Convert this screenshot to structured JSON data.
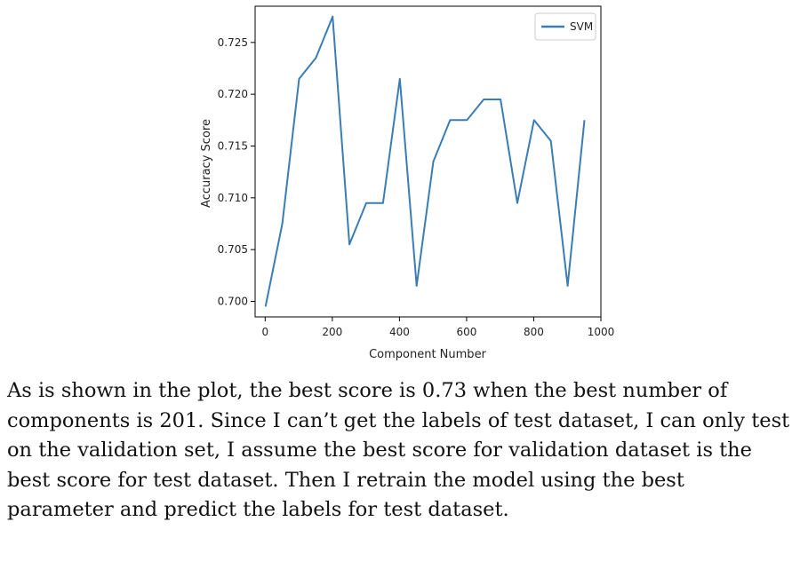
{
  "chart_data": {
    "type": "line",
    "xlabel": "Component Number",
    "ylabel": "Accuracy Score",
    "xlim": [
      -30,
      1000
    ],
    "ylim": [
      0.6985,
      0.7285
    ],
    "xticks": [
      0,
      200,
      400,
      600,
      800,
      1000
    ],
    "yticks": [
      0.7,
      0.705,
      0.71,
      0.715,
      0.72,
      0.725
    ],
    "xtick_labels": [
      "0",
      "200",
      "400",
      "600",
      "800",
      "1000"
    ],
    "ytick_labels": [
      "0.700",
      "0.705",
      "0.710",
      "0.715",
      "0.720",
      "0.725"
    ],
    "grid": false,
    "legend_position": "top-right",
    "series": [
      {
        "name": "SVM",
        "color": "#3a7db5",
        "x": [
          1,
          51,
          101,
          151,
          201,
          251,
          301,
          351,
          401,
          451,
          501,
          551,
          601,
          651,
          701,
          751,
          801,
          851,
          901,
          951
        ],
        "y": [
          0.6995,
          0.7075,
          0.7215,
          0.7235,
          0.7275,
          0.7055,
          0.7095,
          0.7095,
          0.7215,
          0.7015,
          0.7135,
          0.7175,
          0.7175,
          0.7195,
          0.7195,
          0.7095,
          0.7175,
          0.7155,
          0.7015,
          0.7175
        ]
      }
    ]
  },
  "caption": "As is shown in the plot, the best score is 0.73 when the best number of components is 201. Since I can’t get the labels of test dataset, I can only test on the validation set, I assume the best score for validation dataset is the best score for test dataset. Then I retrain the model using the best parameter and predict the labels for test dataset."
}
